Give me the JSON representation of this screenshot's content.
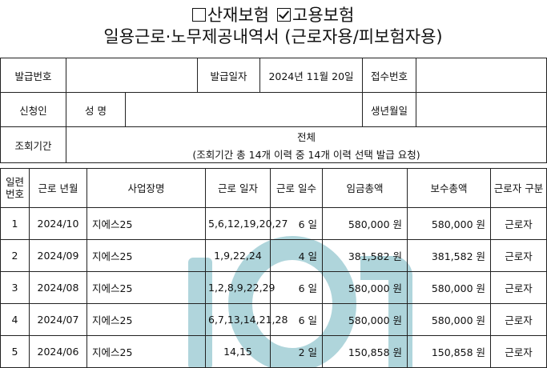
{
  "title": {
    "industrial_insurance_label": "산재보험",
    "employment_insurance_label": "고용보험",
    "main": "일용근로·노무제공내역서 (근로자용/피보험자용)"
  },
  "header": {
    "issue_no_label": "발급번호",
    "issue_date_label": "발급일자",
    "issue_date_value": "2024년 11월 20일",
    "receipt_no_label": "접수번호",
    "applicant_label": "신청인",
    "name_label": "성 명",
    "birth_label": "생년월일",
    "period_label": "조회기간",
    "period_value": "전체",
    "period_note": "(조회기간 총  14개 이력 중 14개 이력 선택 발급 요청)"
  },
  "columns": {
    "seq": "일련 번호",
    "year_month": "근로 년월",
    "workplace": "사업장명",
    "work_days": "근로 일자",
    "day_count": "근로 일수",
    "wage_total": "임금총액",
    "pay_total": "보수총액",
    "worker_type": "근로자 구분"
  },
  "rows": [
    {
      "seq": "1",
      "ym": "2024/10",
      "workplace": "지에스25",
      "days": "5,6,12,19,20,27",
      "count": "6 일",
      "wage": "580,000 원",
      "pay": "580,000 원",
      "type": "근로자"
    },
    {
      "seq": "2",
      "ym": "2024/09",
      "workplace": "지에스25",
      "days": "1,9,22,24",
      "count": "4 일",
      "wage": "381,582 원",
      "pay": "381,582 원",
      "type": "근로자"
    },
    {
      "seq": "3",
      "ym": "2024/08",
      "workplace": "지에스25",
      "days": "1,2,8,9,22,29",
      "count": "6 일",
      "wage": "580,000 원",
      "pay": "580,000 원",
      "type": "근로자"
    },
    {
      "seq": "4",
      "ym": "2024/07",
      "workplace": "지에스25",
      "days": "6,7,13,14,21,28",
      "count": "6 일",
      "wage": "580,000 원",
      "pay": "580,000 원",
      "type": "근로자"
    },
    {
      "seq": "5",
      "ym": "2024/06",
      "workplace": "지에스25",
      "days": "14,15",
      "count": "2 일",
      "wage": "150,858 원",
      "pay": "150,858 원",
      "type": "근로자"
    }
  ]
}
